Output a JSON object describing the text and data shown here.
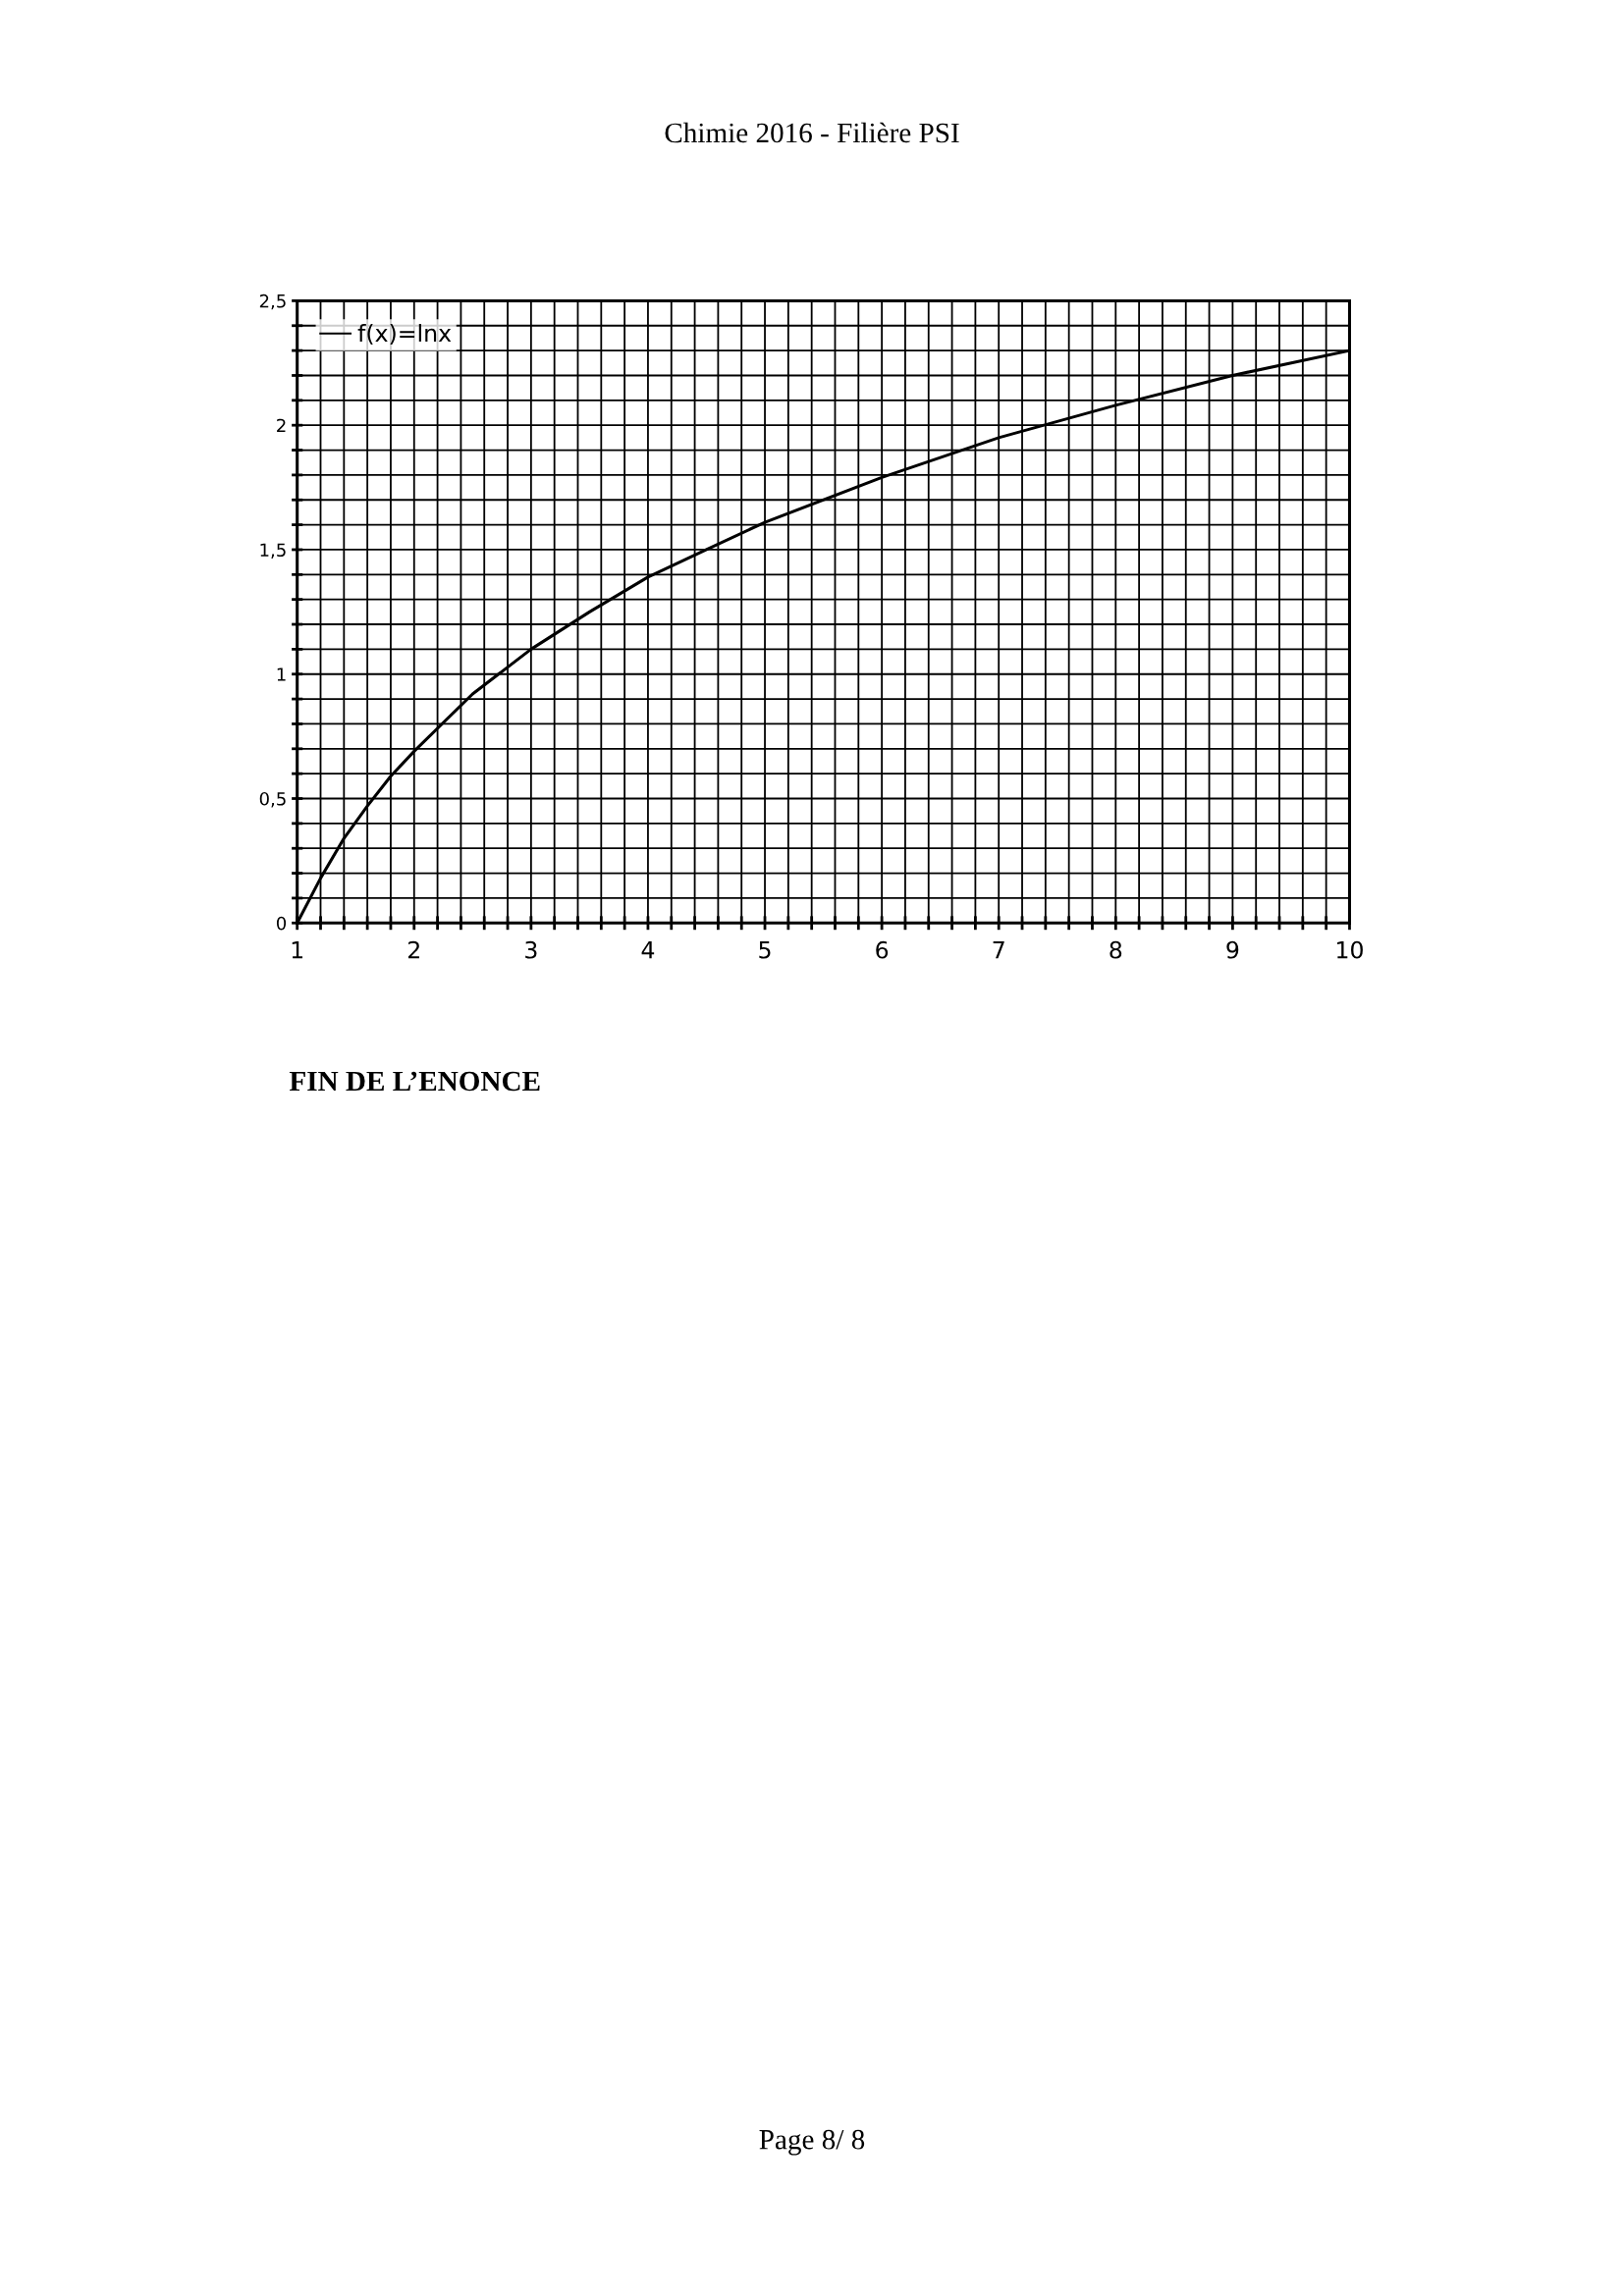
{
  "chart_data": {
    "type": "line",
    "title": "Chimie 2016 - Filière PSI",
    "annotations": [
      "FIN DE L’ENONCE",
      "Page 8/ 8"
    ],
    "x": [
      1,
      1.2,
      1.4,
      1.6,
      1.8,
      2,
      2.5,
      3,
      3.5,
      4,
      4.5,
      5,
      6,
      7,
      8,
      9,
      10
    ],
    "series": [
      {
        "name": "f(x)=lnx",
        "color": "#000000",
        "values": [
          0,
          0.18,
          0.34,
          0.47,
          0.59,
          0.69,
          0.92,
          1.1,
          1.25,
          1.39,
          1.5,
          1.61,
          1.79,
          1.95,
          2.08,
          2.2,
          2.3
        ]
      }
    ],
    "xlim": [
      1,
      10
    ],
    "ylim": [
      0,
      2.5
    ],
    "xticks": [
      1,
      {
        "value": 1.2,
        "label": null
      },
      {
        "value": 1.4,
        "label": null
      },
      {
        "value": 1.6,
        "label": null
      },
      {
        "value": 1.8,
        "label": null
      },
      2,
      {
        "value": 2.2,
        "label": null
      },
      {
        "value": 2.4,
        "label": null
      },
      {
        "value": 2.6,
        "label": null
      },
      {
        "value": 2.8,
        "label": null
      },
      3,
      {
        "value": 3.2,
        "label": null
      },
      {
        "value": 3.4,
        "label": null
      },
      {
        "value": 3.6,
        "label": null
      },
      {
        "value": 3.8,
        "label": null
      },
      4,
      {
        "value": 4.2,
        "label": null
      },
      {
        "value": 4.4,
        "label": null
      },
      {
        "value": 4.6,
        "label": null
      },
      {
        "value": 4.8,
        "label": null
      },
      5,
      {
        "value": 5.2,
        "label": null
      },
      {
        "value": 5.4,
        "label": null
      },
      {
        "value": 5.6,
        "label": null
      },
      {
        "value": 5.8,
        "label": null
      },
      6,
      {
        "value": 6.2,
        "label": null
      },
      {
        "value": 6.4,
        "label": null
      },
      {
        "value": 6.6,
        "label": null
      },
      {
        "value": 6.8,
        "label": null
      },
      7,
      {
        "value": 7.2,
        "label": null
      },
      {
        "value": 7.4,
        "label": null
      },
      {
        "value": 7.6,
        "label": null
      },
      {
        "value": 7.8,
        "label": null
      },
      8,
      {
        "value": 8.2,
        "label": null
      },
      {
        "value": 8.4,
        "label": null
      },
      {
        "value": 8.6,
        "label": null
      },
      {
        "value": 8.8,
        "label": null
      },
      9,
      {
        "value": 9.2,
        "label": null
      },
      {
        "value": 9.4,
        "label": null
      },
      {
        "value": 9.6,
        "label": null
      },
      {
        "value": 9.8,
        "label": null
      },
      10
    ],
    "yticks": [
      0,
      {
        "value": 0.1,
        "label": null
      },
      {
        "value": 0.2,
        "label": null
      },
      {
        "value": 0.3,
        "label": null
      },
      {
        "value": 0.4,
        "label": null
      },
      {
        "value": 0.5,
        "label": "0,5"
      },
      {
        "value": 0.6,
        "label": null
      },
      {
        "value": 0.7,
        "label": null
      },
      {
        "value": 0.8,
        "label": null
      },
      {
        "value": 0.9,
        "label": null
      },
      1,
      {
        "value": 1.1,
        "label": null
      },
      {
        "value": 1.2,
        "label": null
      },
      {
        "value": 1.3,
        "label": null
      },
      {
        "value": 1.4,
        "label": null
      },
      {
        "value": 1.5,
        "label": "1,5"
      },
      {
        "value": 1.6,
        "label": null
      },
      {
        "value": 1.7,
        "label": null
      },
      {
        "value": 1.8,
        "label": null
      },
      {
        "value": 1.9,
        "label": null
      },
      2,
      {
        "value": 2.1,
        "label": null
      },
      {
        "value": 2.2,
        "label": null
      },
      {
        "value": 2.3,
        "label": null
      },
      {
        "value": 2.4,
        "label": null
      },
      {
        "value": 2.5,
        "label": "2,5"
      }
    ],
    "grid": true,
    "legend": "top left",
    "marker": "none",
    "line_style": "solid"
  }
}
